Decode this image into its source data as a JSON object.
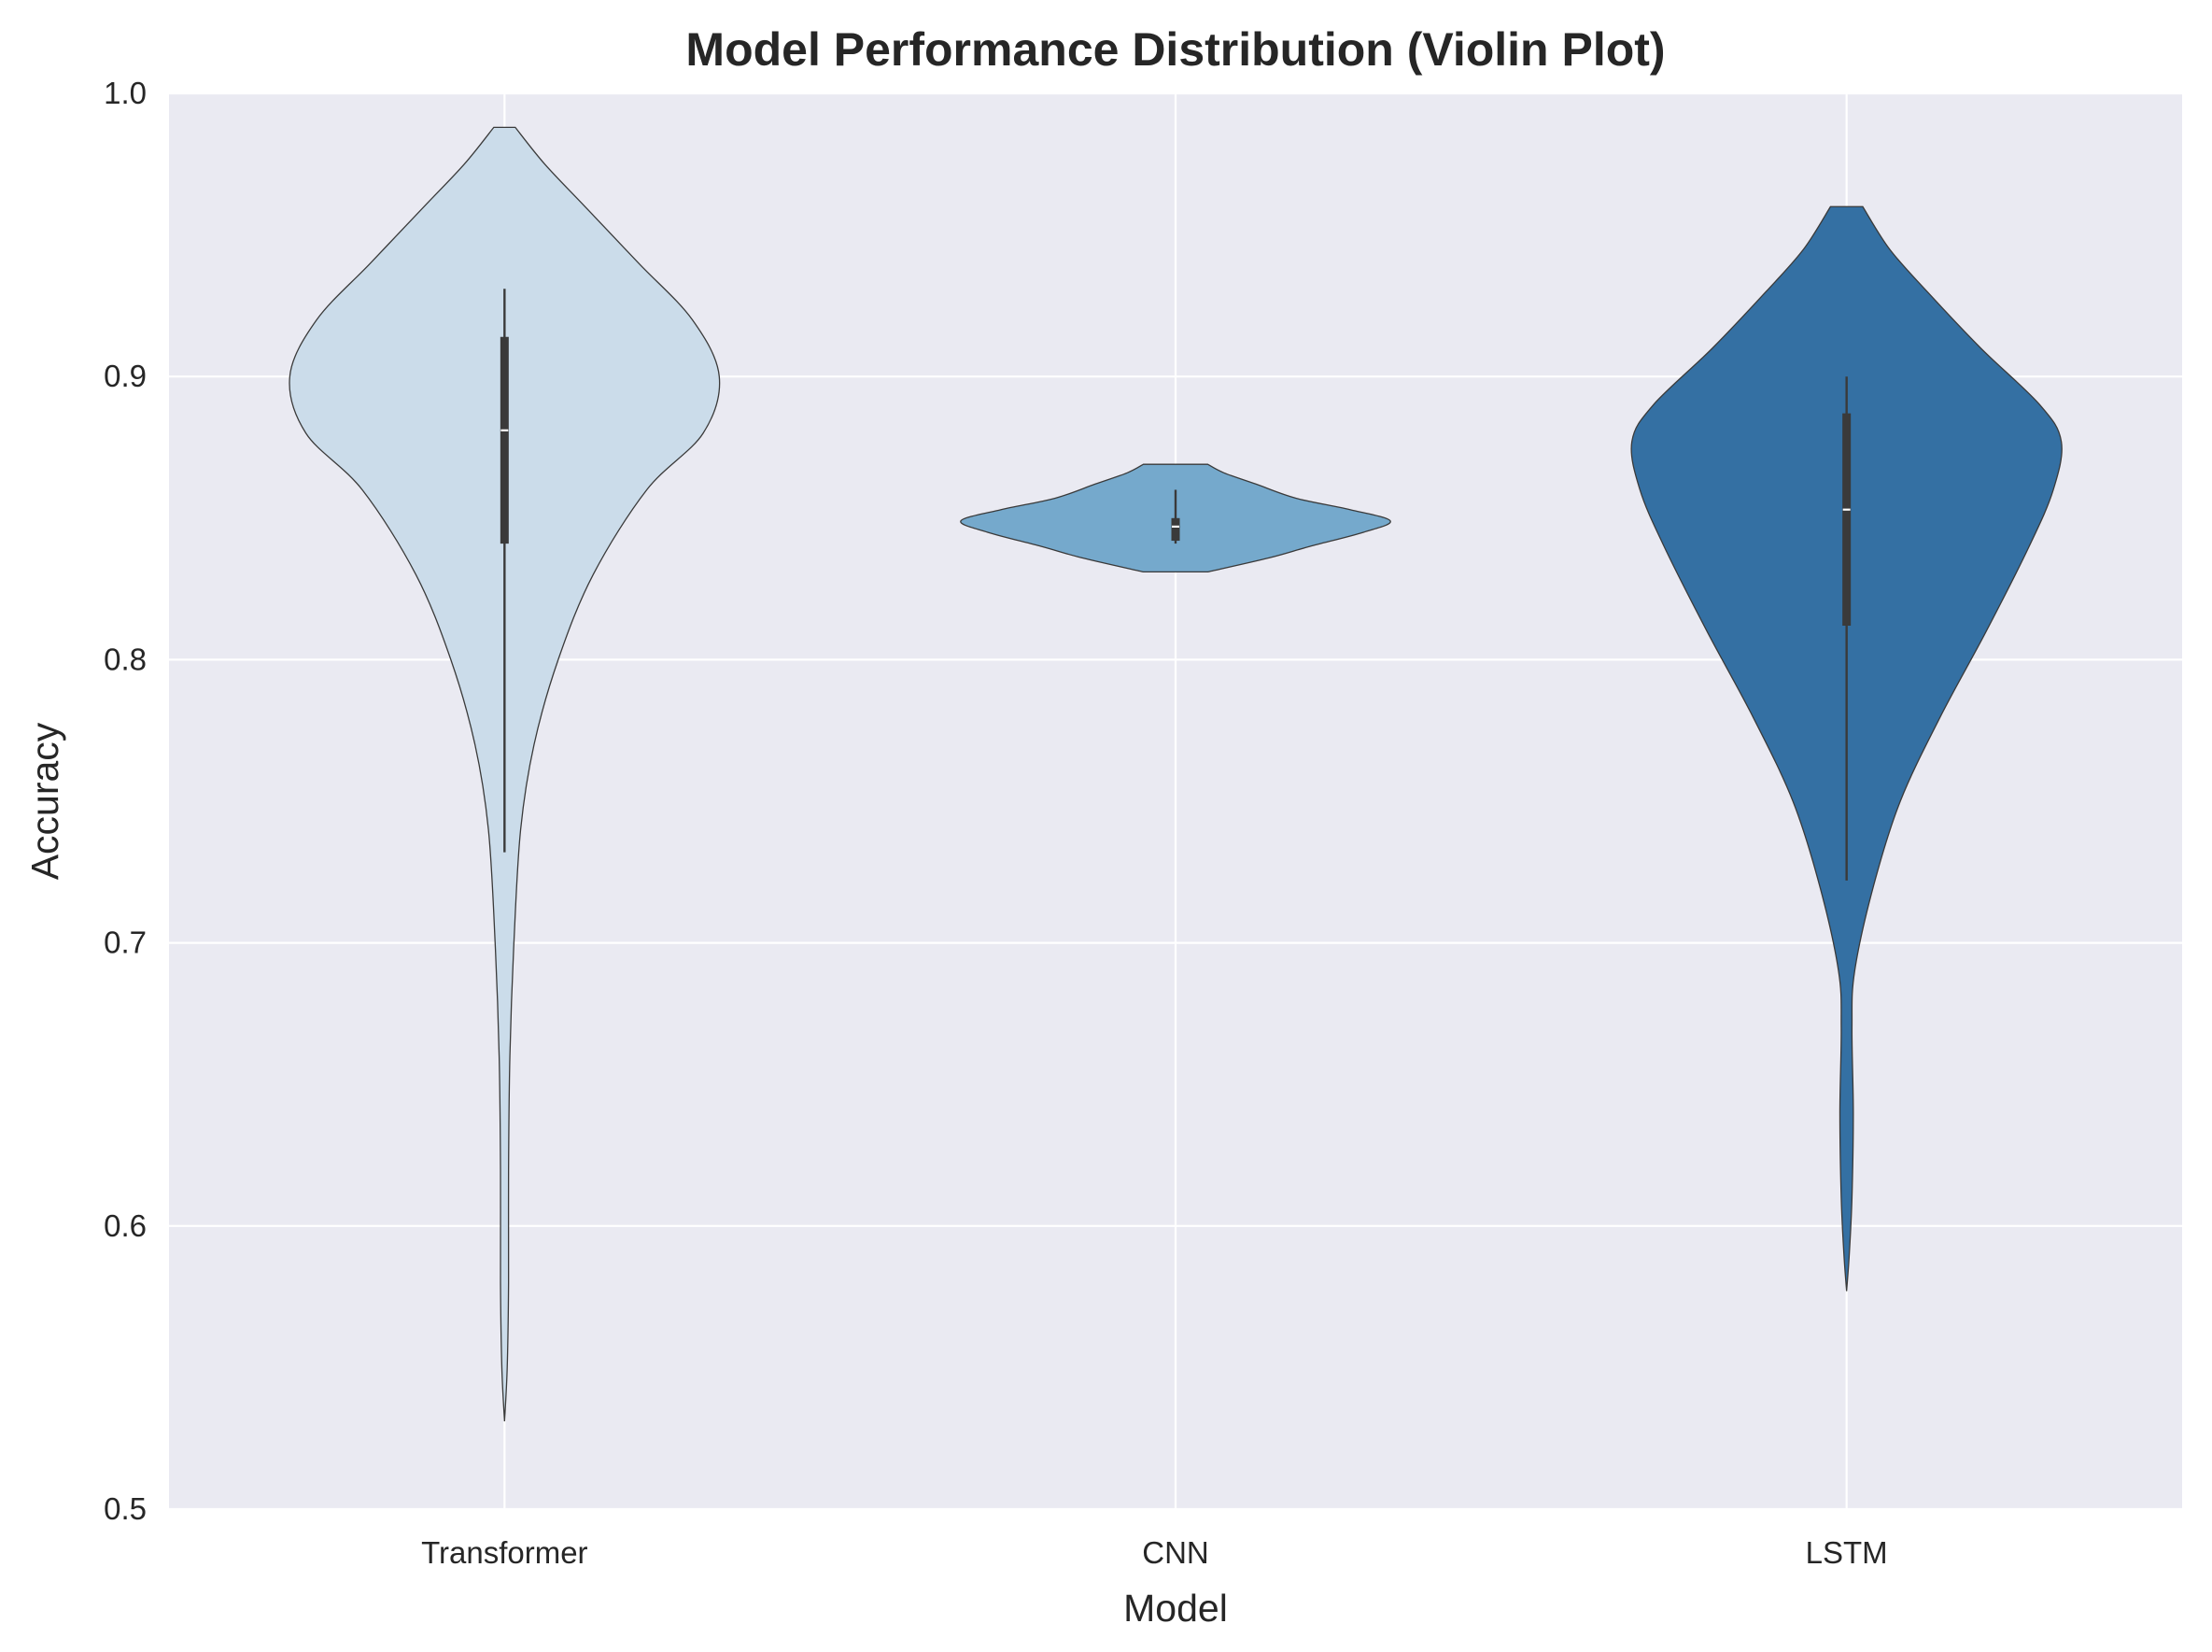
{
  "chart_data": {
    "type": "violin",
    "title": "Model Performance Distribution (Violin Plot)",
    "xlabel": "Model",
    "ylabel": "Accuracy",
    "ylim": [
      0.5,
      1.0
    ],
    "yticks": [
      "0.5",
      "0.6",
      "0.7",
      "0.8",
      "0.9",
      "1.0"
    ],
    "grid": true,
    "background": "#eaeaf2",
    "categories": [
      "Transformer",
      "CNN",
      "LSTM"
    ],
    "series": [
      {
        "category": "Transformer",
        "color": "#cbdcea",
        "min": 0.531,
        "max": 0.988,
        "q1": 0.841,
        "median": 0.881,
        "q3": 0.914,
        "whisker_low": 0.732,
        "whisker_high": 0.931,
        "density": [
          [
            0.531,
            0.0
          ],
          [
            0.55,
            0.01
          ],
          [
            0.58,
            0.015
          ],
          [
            0.62,
            0.015
          ],
          [
            0.66,
            0.02
          ],
          [
            0.7,
            0.035
          ],
          [
            0.74,
            0.06
          ],
          [
            0.77,
            0.11
          ],
          [
            0.8,
            0.2
          ],
          [
            0.83,
            0.33
          ],
          [
            0.86,
            0.53
          ],
          [
            0.88,
            0.74
          ],
          [
            0.9,
            0.8
          ],
          [
            0.92,
            0.7
          ],
          [
            0.94,
            0.5
          ],
          [
            0.96,
            0.3
          ],
          [
            0.975,
            0.15
          ],
          [
            0.988,
            0.04
          ]
        ]
      },
      {
        "category": "CNN",
        "color": "#75a9cc",
        "min": 0.831,
        "max": 0.869,
        "q1": 0.842,
        "median": 0.847,
        "q3": 0.85,
        "whisker_low": 0.841,
        "whisker_high": 0.86,
        "density": [
          [
            0.831,
            0.12
          ],
          [
            0.836,
            0.35
          ],
          [
            0.84,
            0.5
          ],
          [
            0.845,
            0.7
          ],
          [
            0.849,
            0.8
          ],
          [
            0.853,
            0.65
          ],
          [
            0.857,
            0.45
          ],
          [
            0.862,
            0.3
          ],
          [
            0.866,
            0.18
          ],
          [
            0.869,
            0.12
          ]
        ]
      },
      {
        "category": "LSTM",
        "color": "#3470a3",
        "min": 0.577,
        "max": 0.96,
        "q1": 0.812,
        "median": 0.853,
        "q3": 0.887,
        "whisker_low": 0.722,
        "whisker_high": 0.9,
        "density": [
          [
            0.577,
            0.0
          ],
          [
            0.59,
            0.01
          ],
          [
            0.61,
            0.02
          ],
          [
            0.64,
            0.025
          ],
          [
            0.67,
            0.02
          ],
          [
            0.69,
            0.03
          ],
          [
            0.72,
            0.1
          ],
          [
            0.75,
            0.2
          ],
          [
            0.78,
            0.35
          ],
          [
            0.81,
            0.52
          ],
          [
            0.84,
            0.68
          ],
          [
            0.86,
            0.77
          ],
          [
            0.877,
            0.8
          ],
          [
            0.89,
            0.72
          ],
          [
            0.91,
            0.5
          ],
          [
            0.93,
            0.3
          ],
          [
            0.945,
            0.16
          ],
          [
            0.96,
            0.06
          ]
        ]
      }
    ]
  }
}
